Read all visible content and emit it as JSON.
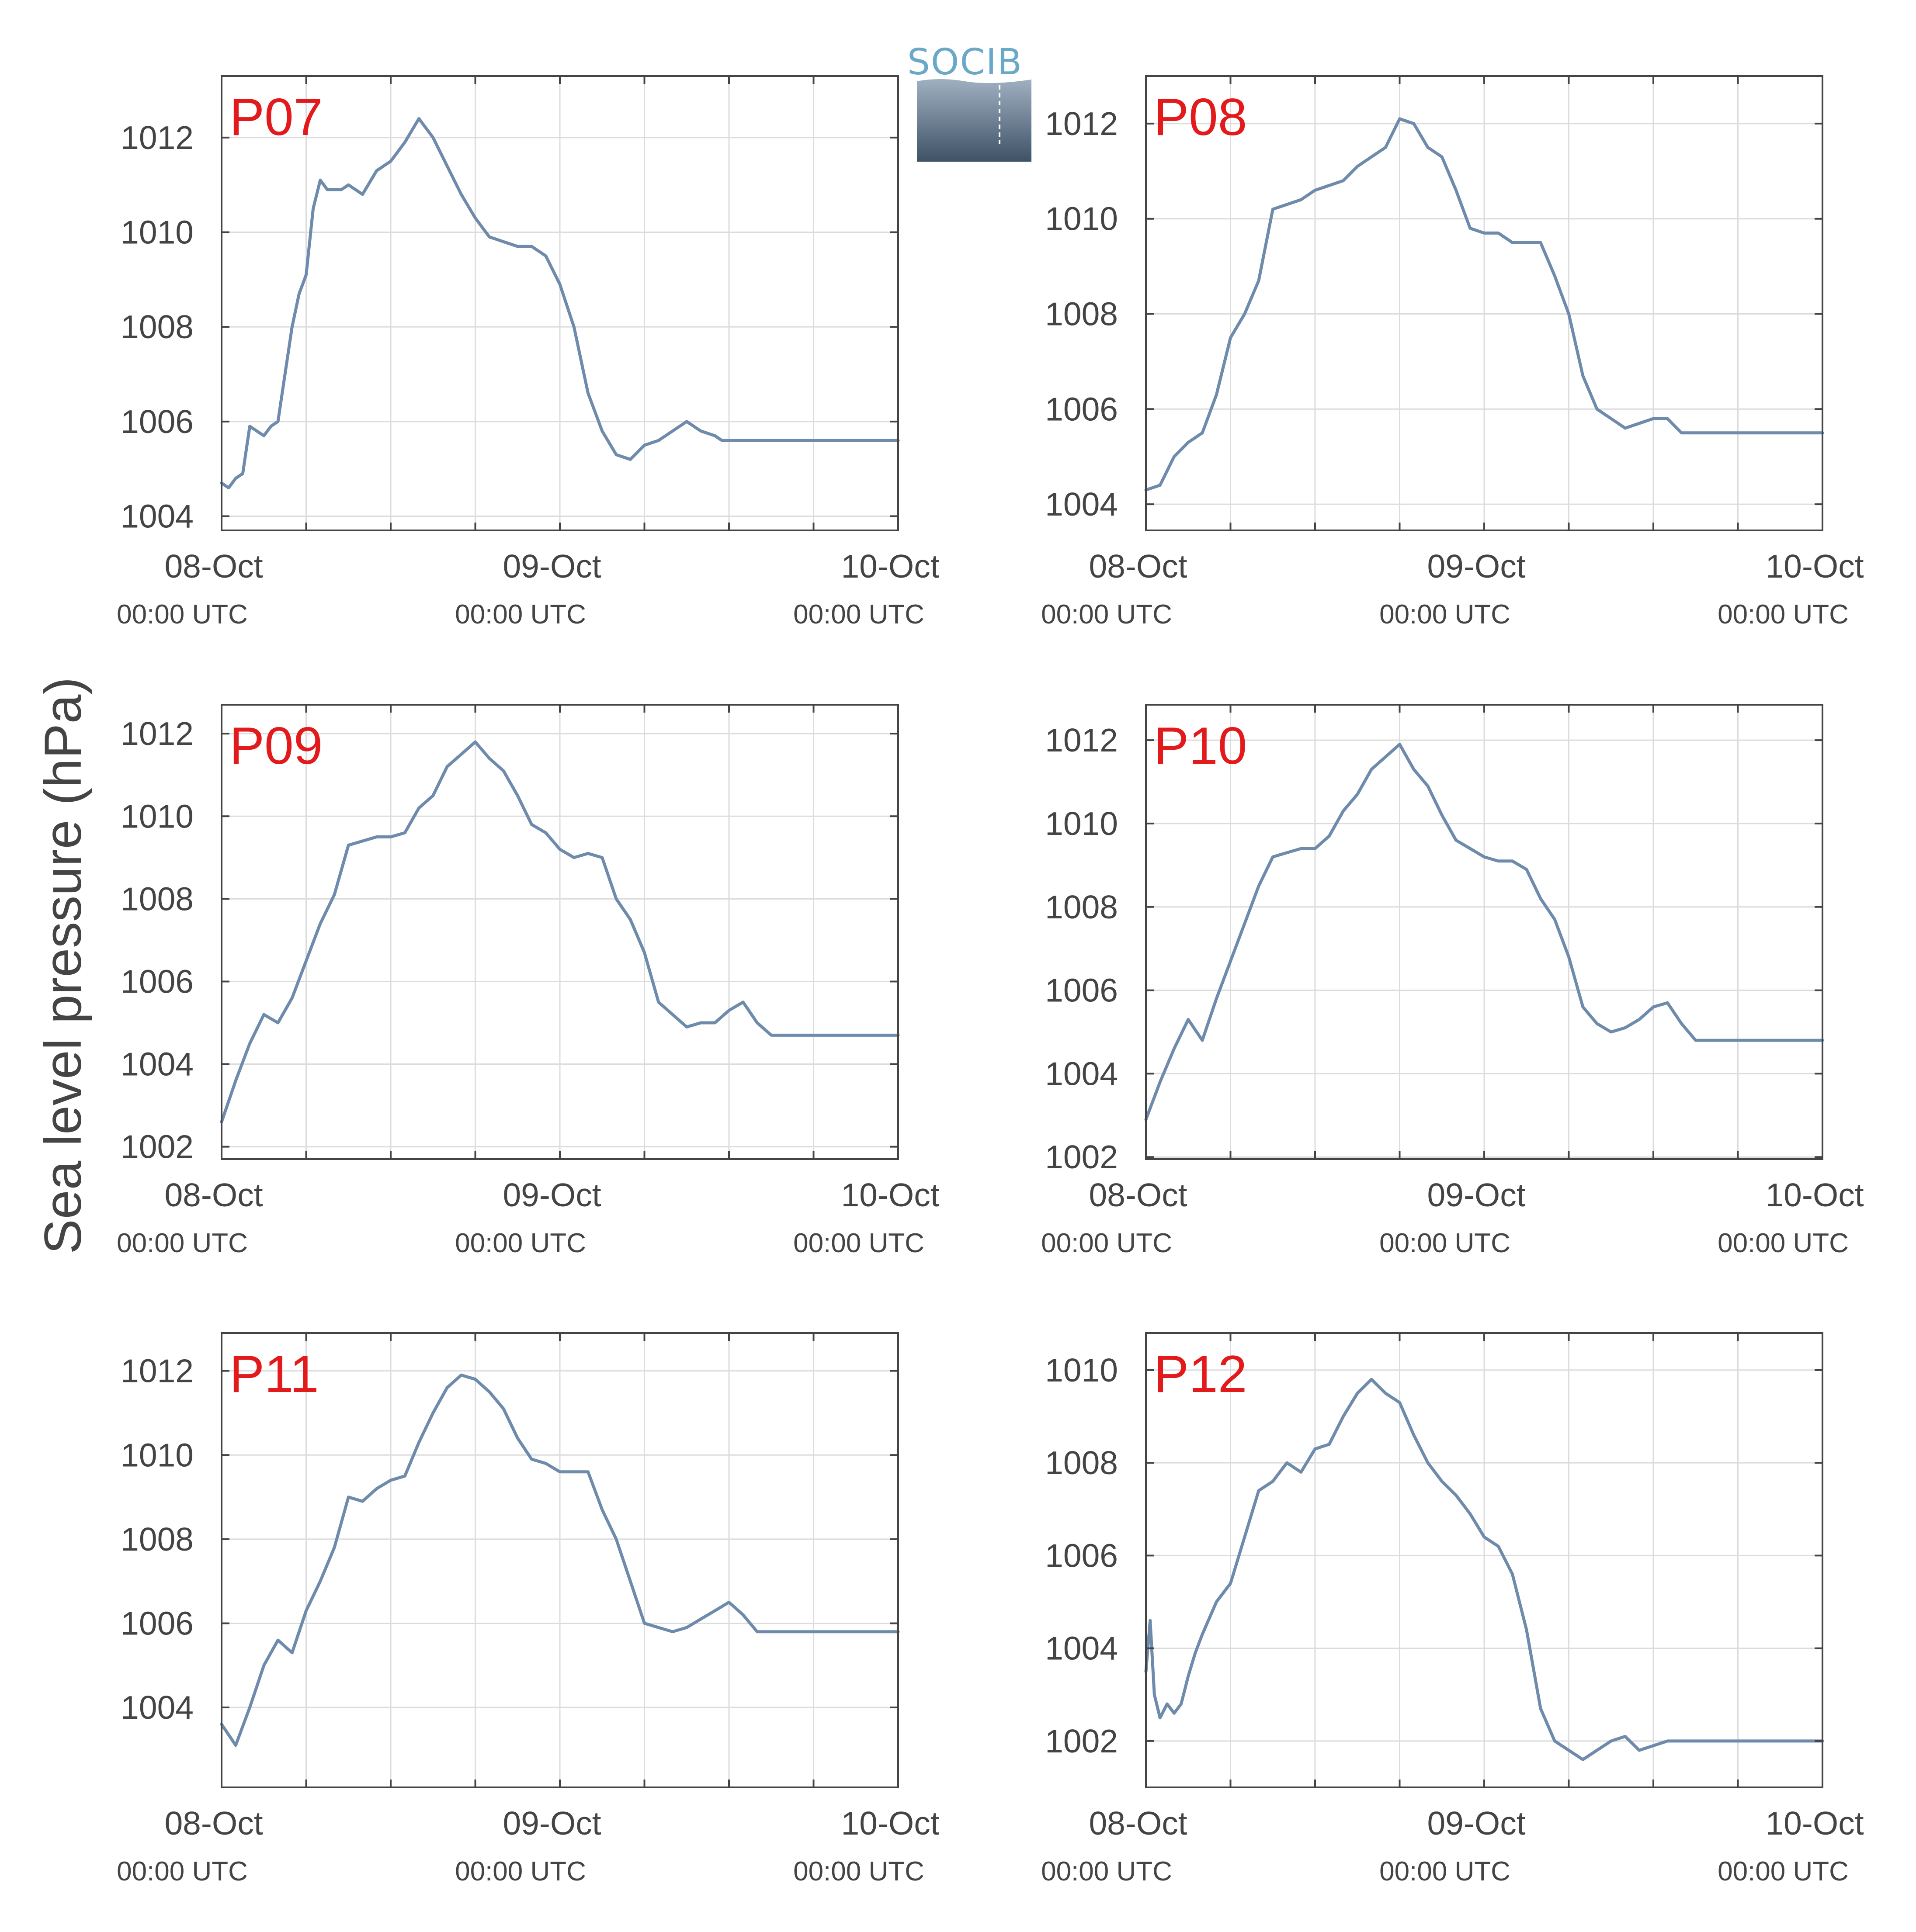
{
  "figure": {
    "ylabel": "Sea level pressure (hPa)",
    "logo_text": "SOCIB",
    "colors": {
      "line": "#6e8bac",
      "title": "#e31a1c",
      "grid": "#dcdcdc",
      "axis": "#444444"
    }
  },
  "chart_data": [
    {
      "type": "line",
      "title": "P07",
      "x_ticks": [
        {
          "date": "08-Oct",
          "time": "00:00 UTC"
        },
        {
          "date": "09-Oct",
          "time": "00:00 UTC"
        },
        {
          "date": "10-Oct",
          "time": "00:00 UTC"
        }
      ],
      "xlim_hours": [
        0,
        48
      ],
      "ylim": [
        1003.7,
        1013.3
      ],
      "yticks": [
        1004,
        1006,
        1008,
        1010,
        1012
      ],
      "series": [
        {
          "x_hours": [
            0,
            0.5,
            1,
            1.5,
            2,
            2.5,
            3,
            3.5,
            4,
            4.5,
            5,
            5.5,
            6,
            6.5,
            7,
            7.5,
            8,
            8.5,
            9,
            10,
            11,
            12,
            13,
            14,
            15,
            16,
            17,
            18,
            19,
            20,
            21,
            22,
            23,
            24,
            25,
            26,
            27,
            28,
            29,
            30,
            31,
            32,
            33,
            34,
            35,
            35.5,
            36,
            37,
            38,
            39,
            40,
            41,
            42,
            43,
            44,
            45,
            46,
            47,
            48
          ],
          "y": [
            1004.7,
            1004.6,
            1004.8,
            1004.9,
            1005.9,
            1005.8,
            1005.7,
            1005.9,
            1006.0,
            1007.0,
            1008.0,
            1008.7,
            1009.1,
            1010.5,
            1011.1,
            1010.9,
            1010.9,
            1010.9,
            1011.0,
            1010.8,
            1011.3,
            1011.5,
            1011.9,
            1012.4,
            1012.0,
            1011.4,
            1010.8,
            1010.3,
            1009.9,
            1009.8,
            1009.7,
            1009.7,
            1009.5,
            1008.9,
            1008.0,
            1006.6,
            1005.8,
            1005.3,
            1005.2,
            1005.5,
            1005.6,
            1005.8,
            1006.0,
            1005.8,
            1005.7,
            1005.6,
            1005.6,
            1005.6,
            1005.6,
            1005.6,
            1005.6,
            1005.6,
            1005.6,
            1005.6,
            1005.6,
            1005.6,
            1005.6,
            1005.6,
            1005.6
          ]
        }
      ]
    },
    {
      "type": "line",
      "title": "P08",
      "x_ticks": [
        {
          "date": "08-Oct",
          "time": "00:00 UTC"
        },
        {
          "date": "09-Oct",
          "time": "00:00 UTC"
        },
        {
          "date": "10-Oct",
          "time": "00:00 UTC"
        }
      ],
      "xlim_hours": [
        0,
        48
      ],
      "ylim": [
        1003.45,
        1013.0
      ],
      "yticks": [
        1004,
        1006,
        1008,
        1010,
        1012
      ],
      "series": [
        {
          "x_hours": [
            0,
            1,
            2,
            3,
            4,
            5,
            6,
            7,
            8,
            9,
            10,
            11,
            12,
            13,
            14,
            15,
            16,
            17,
            18,
            19,
            20,
            21,
            22,
            23,
            24,
            25,
            26,
            27,
            28,
            29,
            30,
            31,
            32,
            33,
            34,
            35,
            36,
            37,
            38,
            39,
            40,
            41,
            42,
            43,
            44,
            45,
            46,
            47,
            48
          ],
          "y": [
            1004.3,
            1004.4,
            1005.0,
            1005.3,
            1005.5,
            1006.3,
            1007.5,
            1008.0,
            1008.7,
            1010.2,
            1010.3,
            1010.4,
            1010.6,
            1010.7,
            1010.8,
            1011.1,
            1011.3,
            1011.5,
            1012.1,
            1012.0,
            1011.5,
            1011.3,
            1010.6,
            1009.8,
            1009.7,
            1009.7,
            1009.5,
            1009.5,
            1009.5,
            1008.8,
            1008.0,
            1006.7,
            1006.0,
            1005.8,
            1005.6,
            1005.7,
            1005.8,
            1005.8,
            1005.5,
            1005.5,
            1005.5,
            1005.5,
            1005.5,
            1005.5,
            1005.5,
            1005.5,
            1005.5,
            1005.5,
            1005.5
          ]
        }
      ]
    },
    {
      "type": "line",
      "title": "P09",
      "x_ticks": [
        {
          "date": "08-Oct",
          "time": "00:00 UTC"
        },
        {
          "date": "09-Oct",
          "time": "00:00 UTC"
        },
        {
          "date": "10-Oct",
          "time": "00:00 UTC"
        }
      ],
      "xlim_hours": [
        0,
        48
      ],
      "ylim": [
        1001.7,
        1012.7
      ],
      "yticks": [
        1002,
        1004,
        1006,
        1008,
        1010,
        1012
      ],
      "series": [
        {
          "x_hours": [
            0,
            1,
            2,
            3,
            4,
            5,
            6,
            7,
            8,
            9,
            10,
            11,
            12,
            13,
            14,
            15,
            16,
            17,
            18,
            19,
            20,
            21,
            22,
            23,
            24,
            25,
            26,
            27,
            28,
            29,
            30,
            31,
            32,
            33,
            34,
            35,
            36,
            37,
            38,
            39,
            40,
            41,
            42,
            43,
            44,
            45,
            46,
            47,
            48
          ],
          "y": [
            1002.6,
            1003.6,
            1004.5,
            1005.2,
            1005.0,
            1005.6,
            1006.5,
            1007.4,
            1008.1,
            1009.3,
            1009.4,
            1009.5,
            1009.5,
            1009.6,
            1010.2,
            1010.5,
            1011.2,
            1011.5,
            1011.8,
            1011.4,
            1011.1,
            1010.5,
            1009.8,
            1009.6,
            1009.2,
            1009.0,
            1009.1,
            1009.0,
            1008.0,
            1007.5,
            1006.7,
            1005.5,
            1005.2,
            1004.9,
            1005.0,
            1005.0,
            1005.3,
            1005.5,
            1005.0,
            1004.7,
            1004.7,
            1004.7,
            1004.7,
            1004.7,
            1004.7,
            1004.7,
            1004.7,
            1004.7,
            1004.7
          ]
        }
      ]
    },
    {
      "type": "line",
      "title": "P10",
      "x_ticks": [
        {
          "date": "08-Oct",
          "time": "00:00 UTC"
        },
        {
          "date": "09-Oct",
          "time": "00:00 UTC"
        },
        {
          "date": "10-Oct",
          "time": "00:00 UTC"
        }
      ],
      "xlim_hours": [
        0,
        48
      ],
      "ylim": [
        1001.95,
        1012.85
      ],
      "yticks": [
        1002,
        1004,
        1006,
        1008,
        1010,
        1012
      ],
      "series": [
        {
          "x_hours": [
            0,
            1,
            2,
            3,
            4,
            5,
            6,
            7,
            8,
            9,
            10,
            11,
            12,
            13,
            14,
            15,
            16,
            17,
            18,
            19,
            20,
            21,
            22,
            23,
            24,
            25,
            26,
            27,
            28,
            29,
            30,
            31,
            32,
            33,
            34,
            35,
            36,
            37,
            38,
            39,
            40,
            41,
            42,
            43,
            44,
            45,
            46,
            47,
            48
          ],
          "y": [
            1002.9,
            1003.8,
            1004.6,
            1005.3,
            1004.8,
            1005.8,
            1006.7,
            1007.6,
            1008.5,
            1009.2,
            1009.3,
            1009.4,
            1009.4,
            1009.7,
            1010.3,
            1010.7,
            1011.3,
            1011.6,
            1011.9,
            1011.3,
            1010.9,
            1010.2,
            1009.6,
            1009.4,
            1009.2,
            1009.1,
            1009.1,
            1008.9,
            1008.2,
            1007.7,
            1006.8,
            1005.6,
            1005.2,
            1005.0,
            1005.1,
            1005.3,
            1005.6,
            1005.7,
            1005.2,
            1004.8,
            1004.8,
            1004.8,
            1004.8,
            1004.8,
            1004.8,
            1004.8,
            1004.8,
            1004.8,
            1004.8
          ]
        }
      ]
    },
    {
      "type": "line",
      "title": "P11",
      "x_ticks": [
        {
          "date": "08-Oct",
          "time": "00:00 UTC"
        },
        {
          "date": "09-Oct",
          "time": "00:00 UTC"
        },
        {
          "date": "10-Oct",
          "time": "00:00 UTC"
        }
      ],
      "xlim_hours": [
        0,
        48
      ],
      "ylim": [
        1002.1,
        1012.9
      ],
      "yticks": [
        1004,
        1006,
        1008,
        1010,
        1012
      ],
      "series": [
        {
          "x_hours": [
            0,
            1,
            2,
            3,
            4,
            5,
            6,
            7,
            8,
            9,
            10,
            11,
            12,
            13,
            14,
            15,
            16,
            17,
            18,
            19,
            20,
            21,
            22,
            23,
            24,
            25,
            26,
            27,
            28,
            29,
            30,
            31,
            32,
            33,
            34,
            35,
            36,
            37,
            38,
            39,
            40,
            41,
            42,
            43,
            44,
            45,
            46,
            47,
            48
          ],
          "y": [
            1003.6,
            1003.1,
            1004.0,
            1005.0,
            1005.6,
            1005.3,
            1006.3,
            1007.0,
            1007.8,
            1009.0,
            1008.9,
            1009.2,
            1009.4,
            1009.5,
            1010.3,
            1011.0,
            1011.6,
            1011.9,
            1011.8,
            1011.5,
            1011.1,
            1010.4,
            1009.9,
            1009.8,
            1009.6,
            1009.6,
            1009.6,
            1008.7,
            1008.0,
            1007.0,
            1006.0,
            1005.9,
            1005.8,
            1005.9,
            1006.1,
            1006.3,
            1006.5,
            1006.2,
            1005.8,
            1005.8,
            1005.8,
            1005.8,
            1005.8,
            1005.8,
            1005.8,
            1005.8,
            1005.8,
            1005.8,
            1005.8
          ]
        }
      ]
    },
    {
      "type": "line",
      "title": "P12",
      "x_ticks": [
        {
          "date": "08-Oct",
          "time": "00:00 UTC"
        },
        {
          "date": "09-Oct",
          "time": "00:00 UTC"
        },
        {
          "date": "10-Oct",
          "time": "00:00 UTC"
        }
      ],
      "xlim_hours": [
        0,
        48
      ],
      "ylim": [
        1001.0,
        1010.8
      ],
      "yticks": [
        1002,
        1004,
        1006,
        1008,
        1010
      ],
      "series": [
        {
          "x_hours": [
            0,
            0.3,
            0.6,
            1,
            1.5,
            2,
            2.5,
            3,
            3.5,
            4,
            5,
            6,
            7,
            8,
            9,
            10,
            11,
            12,
            13,
            14,
            15,
            16,
            17,
            18,
            19,
            20,
            21,
            22,
            23,
            24,
            25,
            26,
            27,
            28,
            29,
            30,
            31,
            32,
            33,
            34,
            35,
            36,
            37,
            38,
            39,
            40,
            41,
            42,
            43,
            44,
            45,
            46,
            47,
            48
          ],
          "y": [
            1003.5,
            1004.6,
            1003.0,
            1002.5,
            1002.8,
            1002.6,
            1002.8,
            1003.4,
            1003.9,
            1004.3,
            1005.0,
            1005.4,
            1006.4,
            1007.4,
            1007.6,
            1008.0,
            1007.8,
            1008.3,
            1008.4,
            1009.0,
            1009.5,
            1009.8,
            1009.5,
            1009.3,
            1008.6,
            1008.0,
            1007.6,
            1007.3,
            1006.9,
            1006.4,
            1006.2,
            1005.6,
            1004.4,
            1002.7,
            1002.0,
            1001.8,
            1001.6,
            1001.8,
            1002.0,
            1002.1,
            1001.8,
            1001.9,
            1002.0,
            1002.0,
            1002.0,
            1002.0,
            1002.0,
            1002.0,
            1002.0,
            1002.0,
            1002.0,
            1002.0,
            1002.0,
            1002.0
          ]
        }
      ]
    }
  ]
}
